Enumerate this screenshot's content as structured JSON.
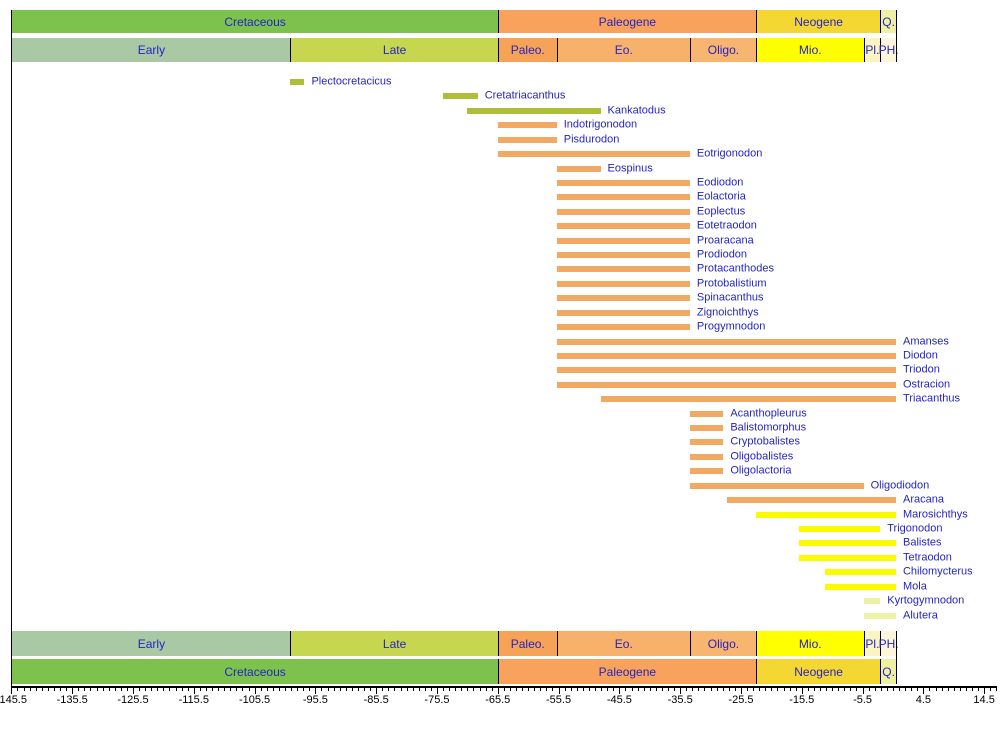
{
  "chart_data": {
    "type": "timeline-range",
    "description": "Geologic time range chart of tetraodontiform fish genera from the Cretaceous to the present",
    "time_axis": {
      "min": -145.5,
      "max": 14.5,
      "major_tick_step": 10,
      "minor_tick_step": 1,
      "tick_labels": [
        "-145.5",
        "-135.5",
        "-125.5",
        "-115.5",
        "-105.5",
        "-95.5",
        "-85.5",
        "-75.5",
        "-65.5",
        "-55.5",
        "-45.5",
        "-35.5",
        "-25.5",
        "-15.5",
        "-5.5",
        "4.5",
        "14.5"
      ]
    },
    "legend_position": "none",
    "grid": false,
    "periods": [
      {
        "label": "Cretaceous",
        "start": -145.5,
        "end": -65.5,
        "color": "#7dc24d"
      },
      {
        "label": "Paleogene",
        "start": -65.5,
        "end": -23.03,
        "color": "#f8a25b"
      },
      {
        "label": "Neogene",
        "start": -23.03,
        "end": -2.588,
        "color": "#f5d734"
      },
      {
        "label": "Q.",
        "start": -2.588,
        "end": 0,
        "color": "#eef0a2"
      }
    ],
    "epochs": [
      {
        "label": "Early",
        "start": -145.5,
        "end": -99.6,
        "color": "#a9c8a4"
      },
      {
        "label": "Late",
        "start": -99.6,
        "end": -65.5,
        "color": "#c6d64f"
      },
      {
        "label": "Paleo.",
        "start": -65.5,
        "end": -55.8,
        "color": "#f6a257"
      },
      {
        "label": "Eo.",
        "start": -55.8,
        "end": -33.9,
        "color": "#f8b16b"
      },
      {
        "label": "Oligo.",
        "start": -33.9,
        "end": -23.03,
        "color": "#f8b56f"
      },
      {
        "label": "Mio.",
        "start": -23.03,
        "end": -5.332,
        "color": "#ffff00"
      },
      {
        "label": "Pl.",
        "start": -5.332,
        "end": -2.588,
        "color": "#fcf3c3"
      },
      {
        "label": "PH.",
        "start": -2.588,
        "end": 0,
        "color": "#fdf6da"
      }
    ],
    "bar_palette": {
      "cretaceous": "#aebe3a",
      "paleogene": "#f1a963",
      "neogene": "#fafa00",
      "pliocene": "#edf2a6"
    },
    "taxa": [
      {
        "name": "Plectocretacicus",
        "start": -99.6,
        "end": -97.3,
        "color": "cretaceous"
      },
      {
        "name": "Cretatriacanthus",
        "start": -74.5,
        "end": -68.8,
        "color": "cretaceous"
      },
      {
        "name": "Kankatodus",
        "start": -70.6,
        "end": -48.6,
        "color": "cretaceous"
      },
      {
        "name": "Indotrigonodon",
        "start": -65.5,
        "end": -55.8,
        "color": "paleogene"
      },
      {
        "name": "Pisdurodon",
        "start": -65.5,
        "end": -55.8,
        "color": "paleogene"
      },
      {
        "name": "Eotrigonodon",
        "start": -65.5,
        "end": -33.9,
        "color": "paleogene"
      },
      {
        "name": "Eospinus",
        "start": -55.8,
        "end": -48.6,
        "color": "paleogene"
      },
      {
        "name": "Eodiodon",
        "start": -55.8,
        "end": -33.9,
        "color": "paleogene"
      },
      {
        "name": "Eolactoria",
        "start": -55.8,
        "end": -33.9,
        "color": "paleogene"
      },
      {
        "name": "Eoplectus",
        "start": -55.8,
        "end": -33.9,
        "color": "paleogene"
      },
      {
        "name": "Eotetraodon",
        "start": -55.8,
        "end": -33.9,
        "color": "paleogene"
      },
      {
        "name": "Proaracana",
        "start": -55.8,
        "end": -33.9,
        "color": "paleogene"
      },
      {
        "name": "Prodiodon",
        "start": -55.8,
        "end": -33.9,
        "color": "paleogene"
      },
      {
        "name": "Protacanthodes",
        "start": -55.8,
        "end": -33.9,
        "color": "paleogene"
      },
      {
        "name": "Protobalistium",
        "start": -55.8,
        "end": -33.9,
        "color": "paleogene"
      },
      {
        "name": "Spinacanthus",
        "start": -55.8,
        "end": -33.9,
        "color": "paleogene"
      },
      {
        "name": "Zignoichthys",
        "start": -55.8,
        "end": -33.9,
        "color": "paleogene"
      },
      {
        "name": "Progymnodon",
        "start": -55.8,
        "end": -33.9,
        "color": "paleogene"
      },
      {
        "name": "Amanses",
        "start": -55.8,
        "end": 0,
        "color": "paleogene"
      },
      {
        "name": "Diodon",
        "start": -55.8,
        "end": 0,
        "color": "paleogene"
      },
      {
        "name": "Triodon",
        "start": -55.8,
        "end": 0,
        "color": "paleogene"
      },
      {
        "name": "Ostracion",
        "start": -55.8,
        "end": 0,
        "color": "paleogene"
      },
      {
        "name": "Triacanthus",
        "start": -48.6,
        "end": 0,
        "color": "paleogene"
      },
      {
        "name": "Acanthopleurus",
        "start": -33.9,
        "end": -28.4,
        "color": "paleogene"
      },
      {
        "name": "Balistomorphus",
        "start": -33.9,
        "end": -28.4,
        "color": "paleogene"
      },
      {
        "name": "Cryptobalistes",
        "start": -33.9,
        "end": -28.4,
        "color": "paleogene"
      },
      {
        "name": "Oligobalistes",
        "start": -33.9,
        "end": -28.4,
        "color": "paleogene"
      },
      {
        "name": "Oligolactoria",
        "start": -33.9,
        "end": -28.4,
        "color": "paleogene"
      },
      {
        "name": "Oligodiodon",
        "start": -33.9,
        "end": -5.332,
        "color": "paleogene"
      },
      {
        "name": "Aracana",
        "start": -27.8,
        "end": 0,
        "color": "paleogene"
      },
      {
        "name": "Marosichthys",
        "start": -23.03,
        "end": 0,
        "color": "neogene"
      },
      {
        "name": "Trigonodon",
        "start": -15.97,
        "end": -2.588,
        "color": "neogene"
      },
      {
        "name": "Balistes",
        "start": -15.97,
        "end": 0,
        "color": "neogene"
      },
      {
        "name": "Tetraodon",
        "start": -15.97,
        "end": 0,
        "color": "neogene"
      },
      {
        "name": "Chilomycterus",
        "start": -11.61,
        "end": 0,
        "color": "neogene"
      },
      {
        "name": "Mola",
        "start": -11.61,
        "end": 0,
        "color": "neogene"
      },
      {
        "name": "Kyrtogymnodon",
        "start": -5.332,
        "end": -2.588,
        "color": "pliocene"
      },
      {
        "name": "Alutera",
        "start": -5.332,
        "end": 0,
        "color": "pliocene"
      }
    ],
    "text_colors": {
      "labels": "#2424c3",
      "axis": "#000000"
    }
  }
}
